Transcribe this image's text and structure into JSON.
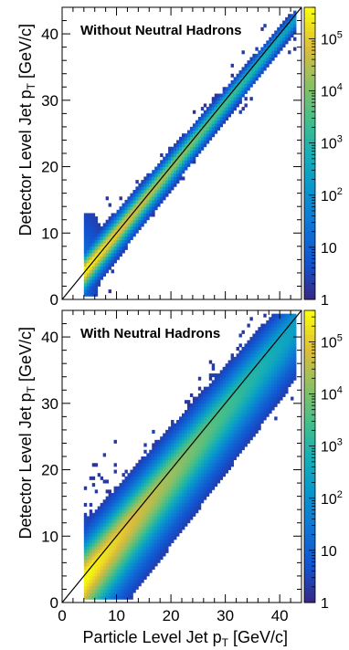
{
  "chart_data": [
    {
      "type": "heatmap",
      "annotation": "Without Neutral Hadrons",
      "xlabel": "",
      "ylabel": "Detector Level Jet p_T [GeV/c]",
      "xlim": [
        0,
        44
      ],
      "ylim": [
        0,
        44
      ],
      "x_ticks": [
        0,
        10,
        20,
        30,
        40
      ],
      "y_ticks": [
        0,
        10,
        20,
        30,
        40
      ],
      "diagonal_reference": true,
      "colorbar": {
        "scale": "log",
        "range": [
          1,
          400000
        ],
        "ticks": [
          "1",
          "10",
          "10^2",
          "10^3",
          "10^4",
          "10^5"
        ]
      },
      "ridge": {
        "x_start": 4,
        "slope": 0.98,
        "width_low": 1.6,
        "width_high": 0.8
      }
    },
    {
      "type": "heatmap",
      "annotation": "With Neutral Hadrons",
      "xlabel": "Particle Level Jet p_T [GeV/c]",
      "ylabel": "Detector Level Jet p_T [GeV/c]",
      "xlim": [
        0,
        44
      ],
      "ylim": [
        0,
        44
      ],
      "x_ticks": [
        0,
        10,
        20,
        30,
        40
      ],
      "y_ticks": [
        0,
        10,
        20,
        30,
        40
      ],
      "diagonal_reference": true,
      "colorbar": {
        "scale": "log",
        "range": [
          1,
          400000
        ],
        "ticks": [
          "1",
          "10",
          "10^2",
          "10^3",
          "10^4",
          "10^5"
        ]
      },
      "ridge": {
        "x_start": 4,
        "slope": 0.98,
        "width_low": 3.5,
        "width_high": 2.8
      }
    }
  ]
}
